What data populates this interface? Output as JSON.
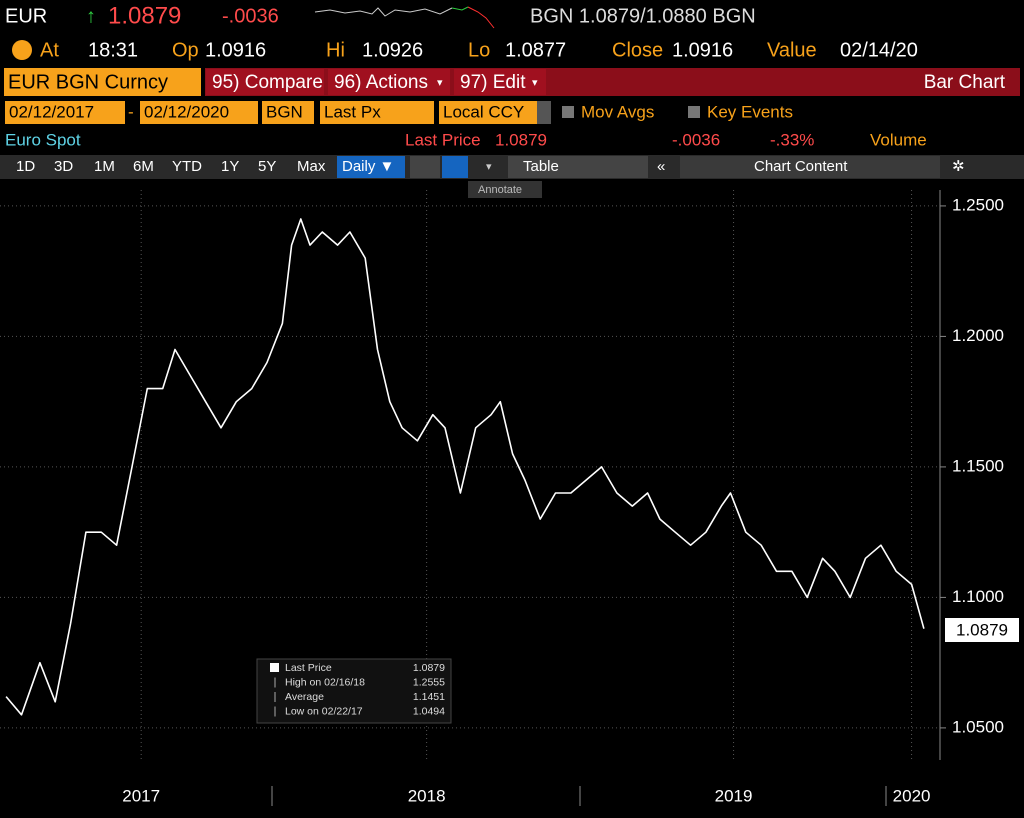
{
  "header": {
    "ticker": "EUR",
    "last": "1.0879",
    "change": "-.0036",
    "quote": "BGN 1.0879/1.0880 BGN",
    "at_label": "At",
    "at": "18:31",
    "open_label": "Op",
    "open": "1.0916",
    "high_label": "Hi",
    "high": "1.0926",
    "low_label": "Lo",
    "low": "1.0877",
    "close_label": "Close",
    "close": "1.0916",
    "value_label": "Value",
    "value": "02/14/20"
  },
  "toolbar": {
    "security": "EUR BGN Curncy",
    "buttons": [
      "95) Compare",
      "96) Actions",
      "97) Edit"
    ],
    "function": "Bar Chart"
  },
  "settings": {
    "start": "02/12/2017",
    "separator": "-",
    "end": "02/12/2020",
    "currency": "BGN",
    "field": "Last Px",
    "ccy_mode": "Local CCY",
    "mov_avgs": "Mov Avgs",
    "key_events": "Key Events"
  },
  "status": {
    "name": "Euro Spot",
    "last_label": "Last Price",
    "last": "1.0879",
    "change": "-.0036",
    "pct_change": "-.33%",
    "volume": "Volume"
  },
  "periods": [
    "1D",
    "3D",
    "1M",
    "6M",
    "YTD",
    "1Y",
    "5Y",
    "Max"
  ],
  "frequency": "Daily ▼",
  "table": "Table",
  "chart_content": "Chart Content",
  "annotate": "Annotate",
  "legend": [
    [
      "Last Price",
      "1.0879"
    ],
    [
      "High on 02/16/18",
      "1.2555"
    ],
    [
      "Average",
      "1.1451"
    ],
    [
      "Low on 02/22/17",
      "1.0494"
    ]
  ],
  "chart_data": {
    "type": "line",
    "color": "#ffffff",
    "grid": true,
    "x": [
      2017.13,
      2017.18,
      2017.24,
      2017.29,
      2017.34,
      2017.39,
      2017.44,
      2017.49,
      2017.54,
      2017.59,
      2017.64,
      2017.68,
      2017.73,
      2017.78,
      2017.83,
      2017.88,
      2017.93,
      2017.98,
      2018.03,
      2018.06,
      2018.09,
      2018.12,
      2018.16,
      2018.21,
      2018.25,
      2018.3,
      2018.34,
      2018.38,
      2018.42,
      2018.47,
      2018.52,
      2018.56,
      2018.61,
      2018.66,
      2018.71,
      2018.74,
      2018.78,
      2018.82,
      2018.87,
      2018.92,
      2018.97,
      2019.02,
      2019.07,
      2019.12,
      2019.17,
      2019.22,
      2019.26,
      2019.31,
      2019.36,
      2019.41,
      2019.46,
      2019.49,
      2019.54,
      2019.59,
      2019.64,
      2019.69,
      2019.74,
      2019.79,
      2019.83,
      2019.88,
      2019.93,
      2019.98,
      2020.03,
      2020.08,
      2020.12
    ],
    "values": [
      1.062,
      1.055,
      1.075,
      1.06,
      1.09,
      1.125,
      1.125,
      1.12,
      1.15,
      1.18,
      1.18,
      1.195,
      1.185,
      1.175,
      1.165,
      1.175,
      1.18,
      1.19,
      1.205,
      1.235,
      1.245,
      1.235,
      1.24,
      1.235,
      1.24,
      1.23,
      1.195,
      1.175,
      1.165,
      1.16,
      1.17,
      1.165,
      1.14,
      1.165,
      1.17,
      1.175,
      1.155,
      1.145,
      1.13,
      1.14,
      1.14,
      1.145,
      1.15,
      1.14,
      1.135,
      1.14,
      1.13,
      1.125,
      1.12,
      1.125,
      1.135,
      1.14,
      1.125,
      1.12,
      1.11,
      1.11,
      1.1,
      1.115,
      1.11,
      1.1,
      1.115,
      1.12,
      1.11,
      1.105,
      1.088
    ],
    "xlim": [
      2017.11,
      2020.14
    ],
    "ylim": [
      1.0377,
      1.2561
    ],
    "xticks": [
      {
        "value": 2017.57,
        "label": "2017"
      },
      {
        "value": 2018.5,
        "label": "2018"
      },
      {
        "value": 2019.5,
        "label": "2019"
      },
      {
        "value": 2020.08,
        "label": "2020"
      }
    ],
    "yticks": [
      {
        "value": 1.05,
        "label": "1.0500"
      },
      {
        "value": 1.1,
        "label": "1.1000"
      },
      {
        "value": 1.15,
        "label": "1.1500"
      },
      {
        "value": 1.2,
        "label": "1.2000"
      },
      {
        "value": 1.25,
        "label": "1.2500"
      }
    ]
  }
}
